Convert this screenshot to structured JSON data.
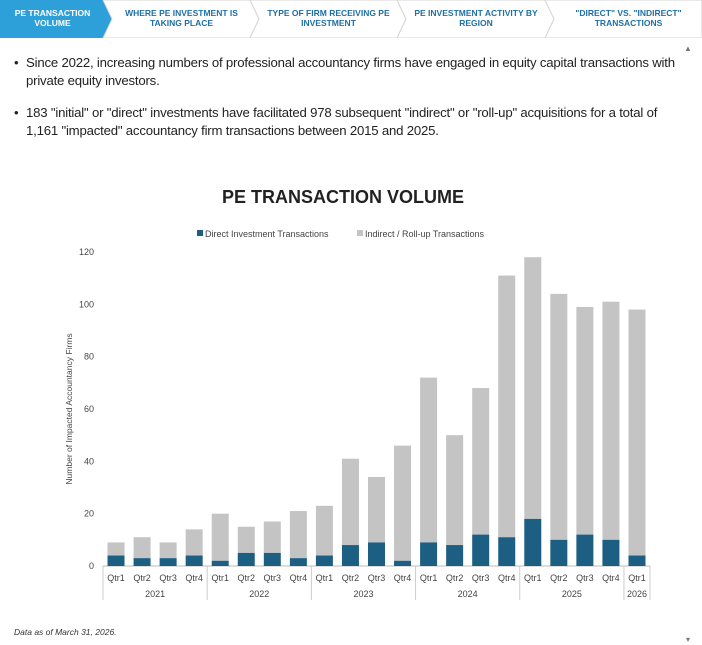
{
  "tabs": [
    {
      "label": "PE TRANSACTION VOLUME",
      "active": true
    },
    {
      "label": "WHERE PE INVESTMENT IS TAKING PLACE",
      "active": false
    },
    {
      "label": "TYPE OF FIRM RECEIVING PE INVESTMENT",
      "active": false
    },
    {
      "label": "PE INVESTMENT ACTIVITY BY REGION",
      "active": false
    },
    {
      "label": "\"DIRECT\" VS. \"INDIRECT\" TRANSACTIONS",
      "active": false
    }
  ],
  "colors": {
    "active_tab": "#2d9fd9",
    "inactive_tab_text": "#1e6fa6",
    "direct": "#1d5f82",
    "indirect": "#c4c4c4"
  },
  "bullets": [
    "Since 2022, increasing numbers of professional accountancy firms have engaged in equity capital transactions with private equity investors.",
    "183 \"initial\" or \"direct\" investments have facilitated 978 subsequent \"indirect\" or \"roll-up\" acquisitions for a total of 1,161 \"impacted\" accountancy firm transactions between 2015 and 2025."
  ],
  "chart_data": {
    "type": "bar",
    "stacked": true,
    "title": "PE TRANSACTION VOLUME",
    "ylabel": "Number of Impacted Accountancy Firms",
    "ylim": [
      0,
      120
    ],
    "yticks": [
      0,
      20,
      40,
      60,
      80,
      100,
      120
    ],
    "grid": false,
    "legend_position": "top",
    "categories": [
      "Qtr1",
      "Qtr2",
      "Qtr3",
      "Qtr4",
      "Qtr1",
      "Qtr2",
      "Qtr3",
      "Qtr4",
      "Qtr1",
      "Qtr2",
      "Qtr3",
      "Qtr4",
      "Qtr1",
      "Qtr2",
      "Qtr3",
      "Qtr4",
      "Qtr1",
      "Qtr2",
      "Qtr3",
      "Qtr4",
      "Qtr1"
    ],
    "year_groups": [
      {
        "year": "2021",
        "count": 4
      },
      {
        "year": "2022",
        "count": 4
      },
      {
        "year": "2023",
        "count": 4
      },
      {
        "year": "2024",
        "count": 4
      },
      {
        "year": "2025",
        "count": 4
      },
      {
        "year": "2026",
        "count": 1
      }
    ],
    "series": [
      {
        "name": "Direct Investment Transactions",
        "values": [
          4,
          3,
          3,
          4,
          2,
          5,
          5,
          3,
          4,
          8,
          9,
          2,
          9,
          8,
          12,
          11,
          18,
          10,
          12,
          10,
          4
        ]
      },
      {
        "name": "Indirect / Roll-up Transactions",
        "values": [
          5,
          8,
          6,
          10,
          18,
          10,
          12,
          18,
          19,
          33,
          25,
          44,
          63,
          42,
          56,
          100,
          100,
          94,
          87,
          91,
          94
        ]
      }
    ]
  },
  "footnote": "Data as of March 31, 2026."
}
